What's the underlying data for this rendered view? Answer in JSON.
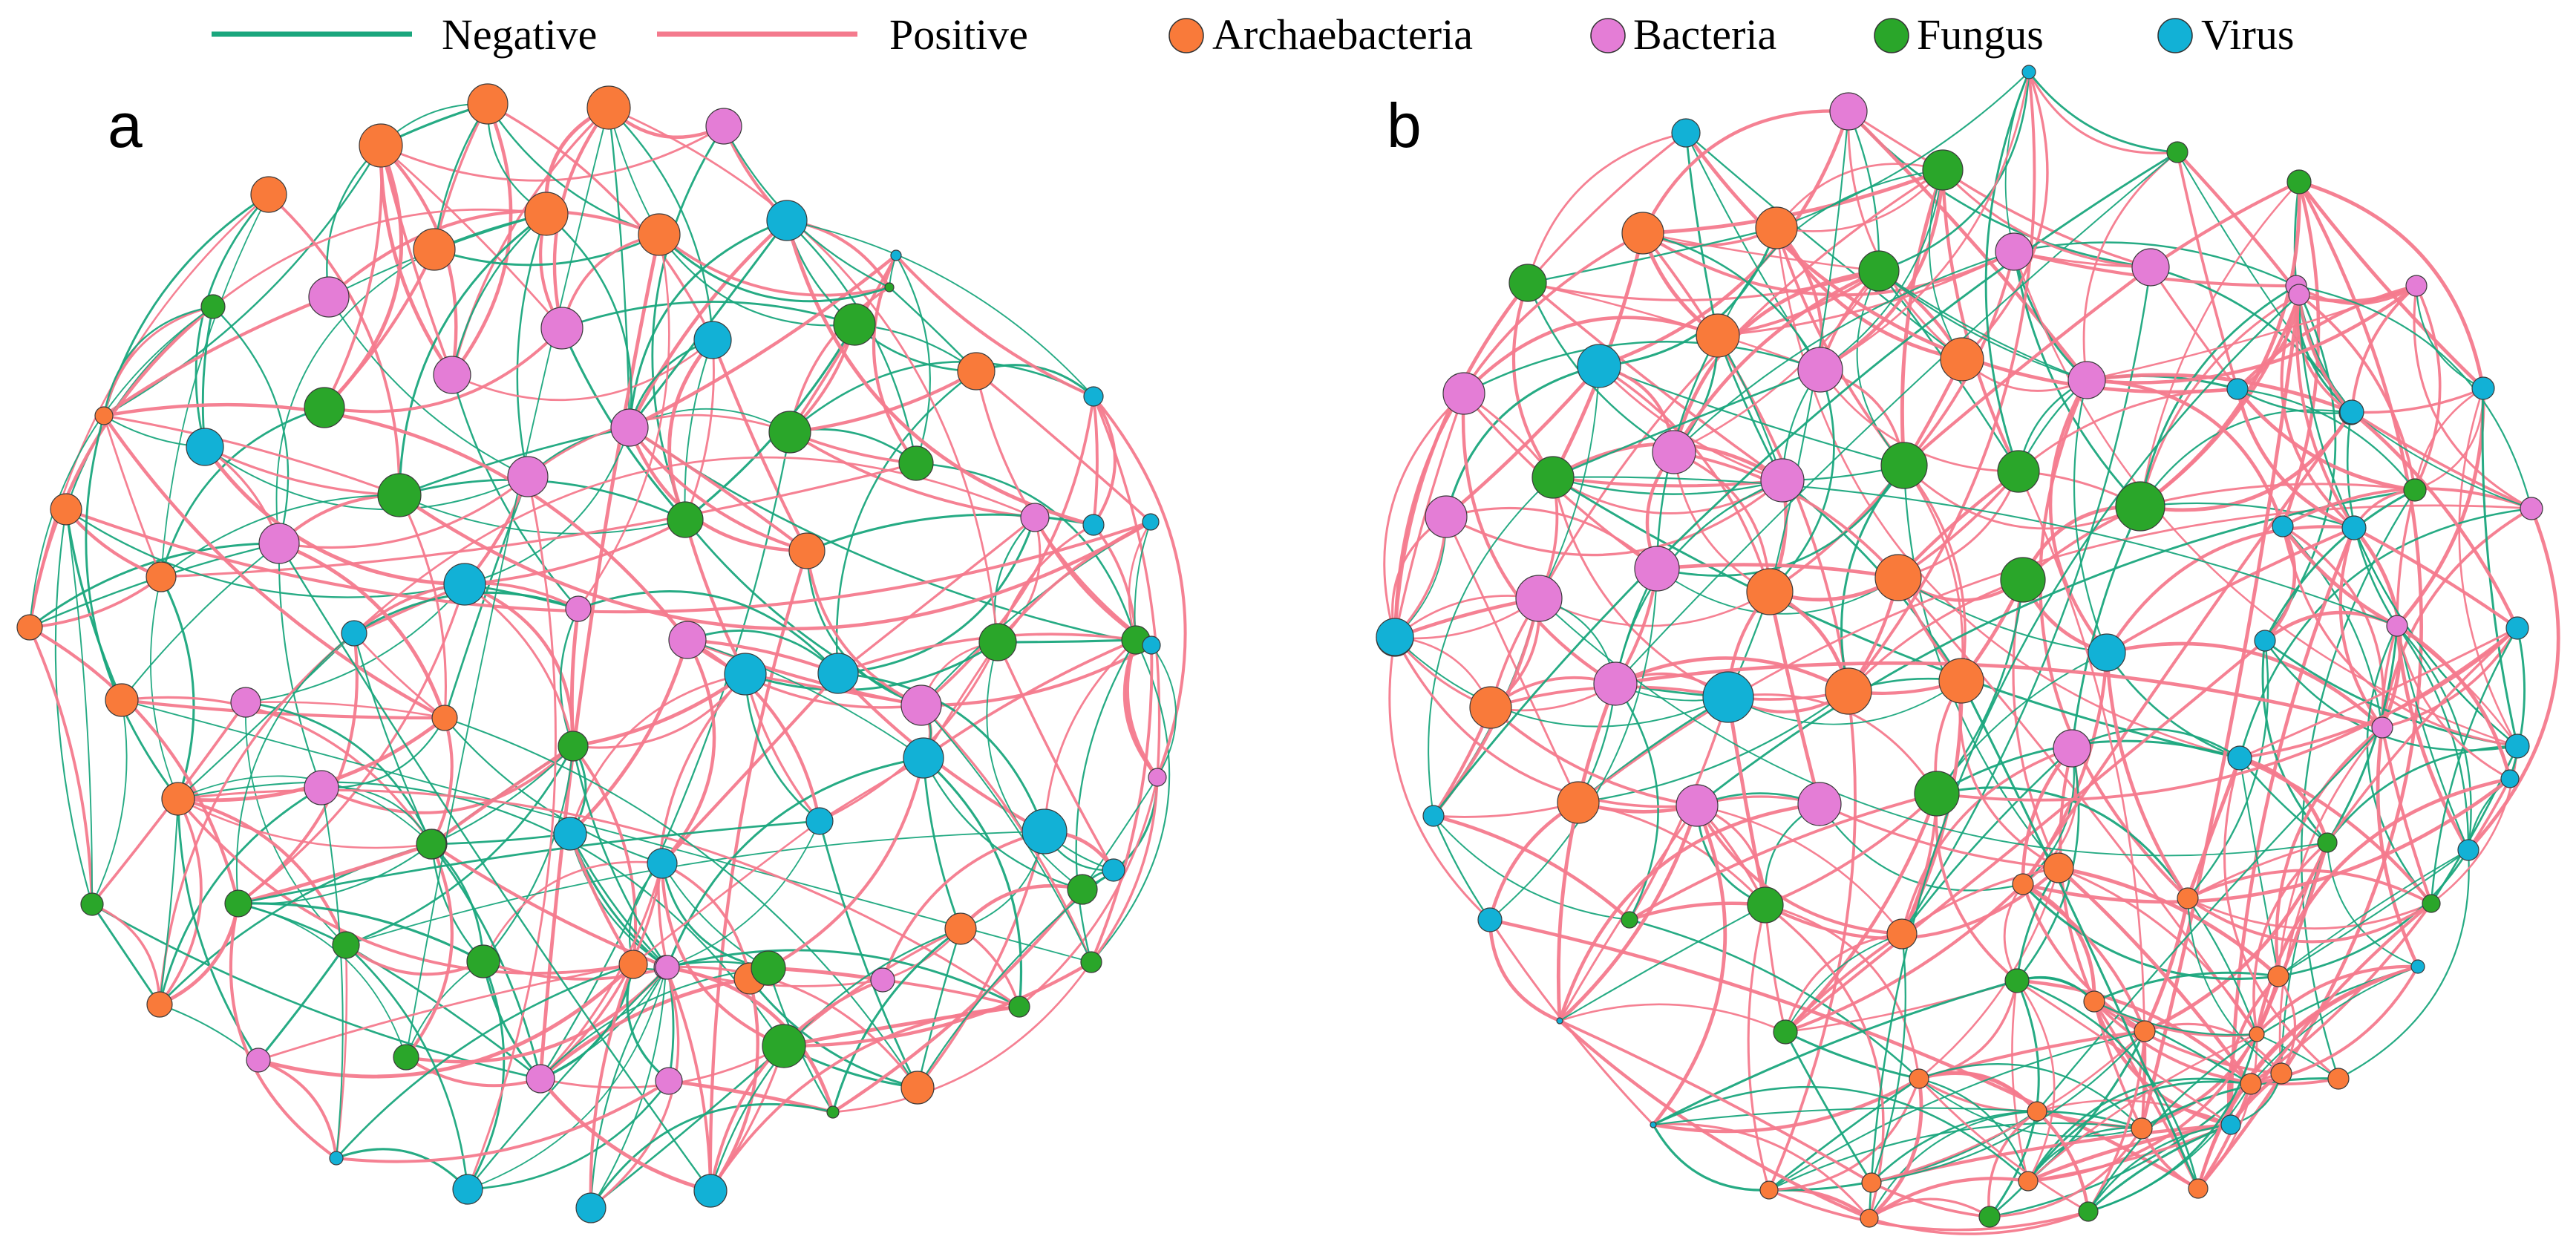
{
  "legend": {
    "edges": [
      {
        "label": "Negative",
        "color": "#1aa67d"
      },
      {
        "label": "Positive",
        "color": "#f47a8d"
      }
    ],
    "nodes": [
      {
        "label": "Archaebacteria",
        "color": "#f97a3a"
      },
      {
        "label": "Bacteria",
        "color": "#e47dd6"
      },
      {
        "label": "Fungus",
        "color": "#2aa62a"
      },
      {
        "label": "Virus",
        "color": "#12b1d6"
      }
    ]
  },
  "panels": [
    {
      "label": "a"
    },
    {
      "label": "b"
    }
  ]
}
